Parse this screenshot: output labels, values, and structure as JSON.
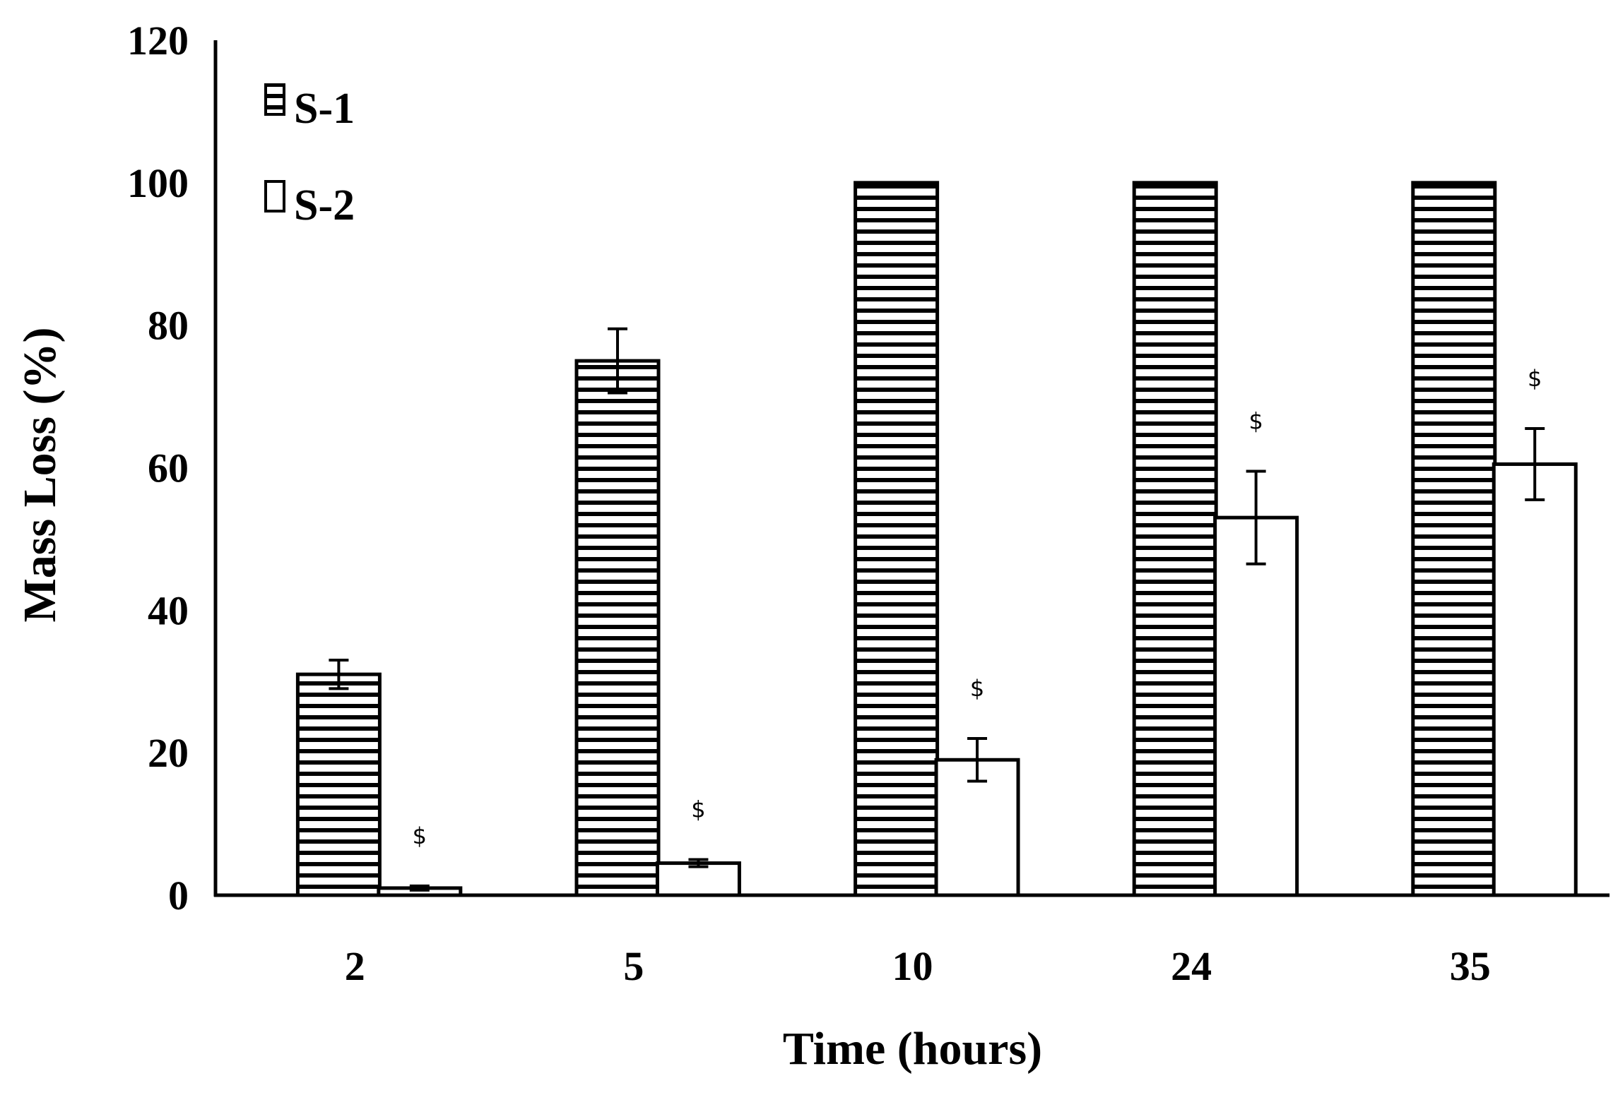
{
  "chart_data": {
    "type": "bar",
    "title": "",
    "xlabel": "Time (hours)",
    "ylabel": "Mass Loss (%)",
    "categories": [
      "2",
      "5",
      "10",
      "24",
      "35"
    ],
    "ylim": [
      0,
      120
    ],
    "y_ticks": [
      "0",
      "20",
      "40",
      "60",
      "80",
      "100",
      "120"
    ],
    "legend_position": "top-left",
    "grid": false,
    "series": [
      {
        "name": "S-1",
        "pattern": "horizontal-stripes",
        "values": [
          31,
          75,
          100,
          100,
          100
        ],
        "errors": [
          2,
          4.5,
          0,
          0,
          0
        ]
      },
      {
        "name": "S-2",
        "pattern": "white",
        "values": [
          1,
          4.5,
          19,
          53,
          60.5
        ],
        "errors": [
          0.3,
          0.5,
          3,
          6.5,
          5
        ]
      }
    ],
    "annotations": {
      "symbol": "$",
      "series": "S-2",
      "categories": [
        "2",
        "5",
        "10",
        "24",
        "35"
      ]
    },
    "colors": {
      "axis": "#000000",
      "stripe": "#000000",
      "fill": "#ffffff"
    }
  }
}
